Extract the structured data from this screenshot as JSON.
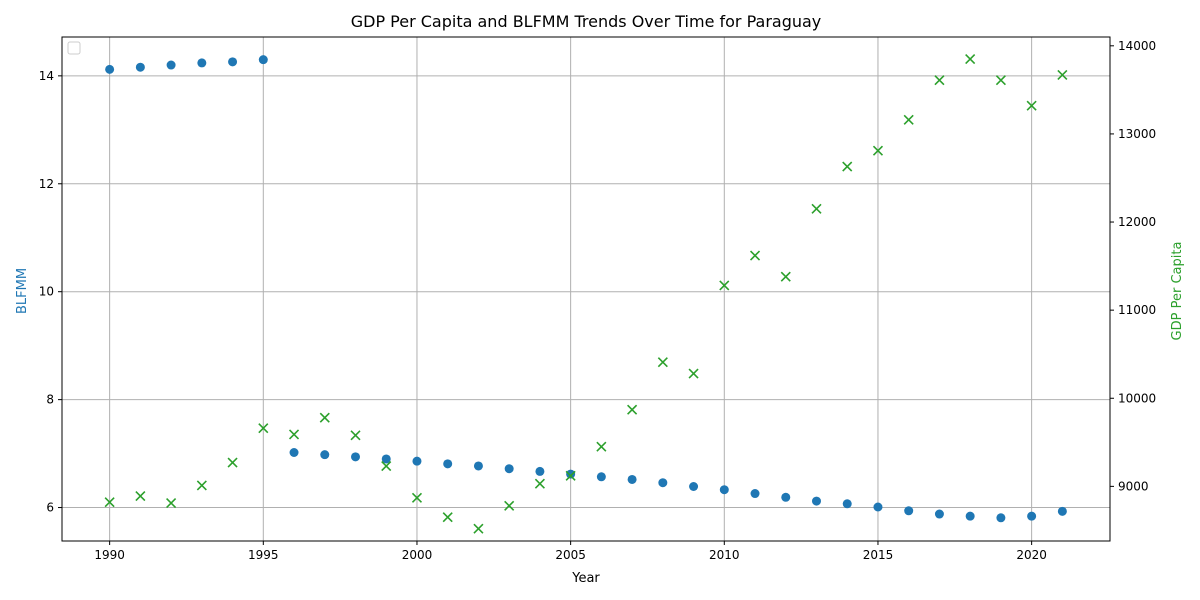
{
  "chart_data": {
    "type": "scatter",
    "title": "GDP Per Capita and BLFMM Trends Over Time for Paraguay",
    "xlabel": "Year",
    "ylabel_left": "BLFMM",
    "ylabel_right": "GDP Per Capita",
    "xlim": [
      1988.45,
      2022.55
    ],
    "ylim_left": [
      5.38,
      14.72
    ],
    "ylim_right": [
      8380,
      14100
    ],
    "x_ticks": [
      1990,
      1995,
      2000,
      2005,
      2010,
      2015,
      2020
    ],
    "y_ticks_left": [
      6,
      8,
      10,
      12,
      14
    ],
    "y_ticks_right": [
      9000,
      10000,
      11000,
      12000,
      13000,
      14000
    ],
    "grid": true,
    "legend": "top-left (empty)",
    "colors": {
      "blfmm": "#1f77b4",
      "gdp": "#2ca02c",
      "grid": "#b0b0b0"
    },
    "series": [
      {
        "axis": "left",
        "marker": "circle",
        "x": [
          1990,
          1991,
          1992,
          1993,
          1994,
          1995,
          1996,
          1997,
          1998,
          1999,
          2000,
          2001,
          2002,
          2003,
          2004,
          2005,
          2006,
          2007,
          2008,
          2009,
          2010,
          2011,
          2012,
          2013,
          2014,
          2015,
          2016,
          2017,
          2018,
          2019,
          2020,
          2021
        ],
        "values": [
          14.12,
          14.16,
          14.2,
          14.24,
          14.26,
          14.3,
          7.02,
          6.98,
          6.94,
          6.9,
          6.86,
          6.81,
          6.77,
          6.72,
          6.67,
          6.62,
          6.57,
          6.52,
          6.46,
          6.39,
          6.33,
          6.26,
          6.19,
          6.12,
          6.07,
          6.01,
          5.94,
          5.88,
          5.84,
          5.81,
          5.84,
          5.93
        ]
      },
      {
        "axis": "right",
        "marker": "x",
        "x": [
          1990,
          1991,
          1992,
          1993,
          1994,
          1995,
          1996,
          1997,
          1998,
          1999,
          2000,
          2001,
          2002,
          2003,
          2004,
          2005,
          2006,
          2007,
          2008,
          2009,
          2010,
          2011,
          2012,
          2013,
          2014,
          2015,
          2016,
          2017,
          2018,
          2019,
          2020,
          2021
        ],
        "values": [
          8820,
          8890,
          8810,
          9010,
          9270,
          9660,
          9590,
          9780,
          9580,
          9230,
          8870,
          8650,
          8520,
          8780,
          9030,
          9120,
          9450,
          9870,
          10410,
          10280,
          11280,
          11620,
          11380,
          12150,
          12630,
          12810,
          13160,
          13610,
          13850,
          13610,
          13320,
          13670
        ]
      }
    ]
  }
}
